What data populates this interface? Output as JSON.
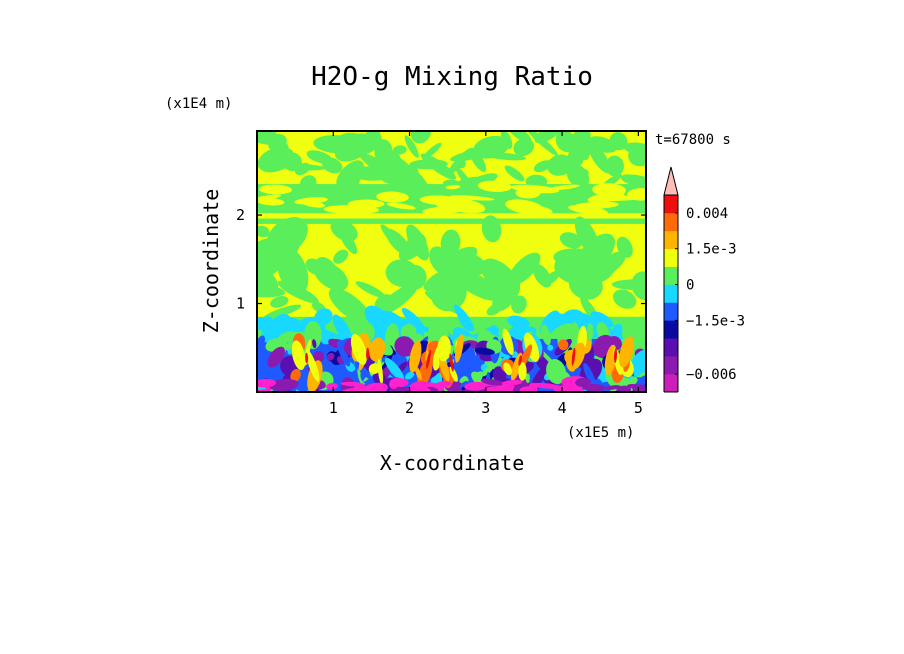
{
  "chart_data": {
    "type": "heatmap",
    "title": "H2O-g Mixing Ratio",
    "xlabel": "X-coordinate",
    "ylabel": "Z-coordinate",
    "x_unit": "(x1E5 m)",
    "y_unit": "(x1E4 m)",
    "time_label": "t=67800 s",
    "xlim": [
      0,
      5.1
    ],
    "ylim": [
      0,
      2.95
    ],
    "xticks": [
      1,
      2,
      3,
      4,
      5
    ],
    "yticks": [
      1,
      2
    ],
    "colorbar": {
      "extend": "both",
      "levels": [
        -0.0075,
        -0.006,
        -0.0045,
        -0.003,
        -0.0015,
        -0.00075,
        0,
        0.00075,
        0.0015,
        0.003,
        0.004,
        0.0055
      ],
      "colors": [
        "#ff22cc",
        "#cc1eb8",
        "#8a1ab0",
        "#5a10b0",
        "#0a0aa0",
        "#1e5aff",
        "#18d8ff",
        "#5aee5a",
        "#f0ff10",
        "#ffb400",
        "#ff6a0a",
        "#ee1010",
        "#ff8a80",
        "#ffbcb8"
      ],
      "tick_labels": [
        {
          "value": 0.004,
          "label": "0.004"
        },
        {
          "value": 0.0015,
          "label": "1.5e-3"
        },
        {
          "value": 0,
          "label": "0"
        },
        {
          "value": -0.0015,
          "label": "−1.5e-3"
        },
        {
          "value": -0.006,
          "label": "−0.006"
        }
      ]
    },
    "field_layers": [
      {
        "z_range": [
          2.35,
          2.95
        ],
        "dominant": "yellow",
        "secondary": "green"
      },
      {
        "z_range": [
          2.0,
          2.35
        ],
        "dominant": "green",
        "secondary": "yellow"
      },
      {
        "z_range": [
          1.75,
          2.0
        ],
        "dominant": "yellow",
        "secondary": "green"
      },
      {
        "z_range": [
          0.85,
          1.75
        ],
        "dominant": "yellow",
        "secondary": "green"
      },
      {
        "z_range": [
          0.55,
          0.85
        ],
        "dominant": "cyan",
        "secondary": "green"
      },
      {
        "z_range": [
          0.0,
          0.55
        ],
        "dominant": "blue",
        "secondary": "orange"
      }
    ]
  }
}
